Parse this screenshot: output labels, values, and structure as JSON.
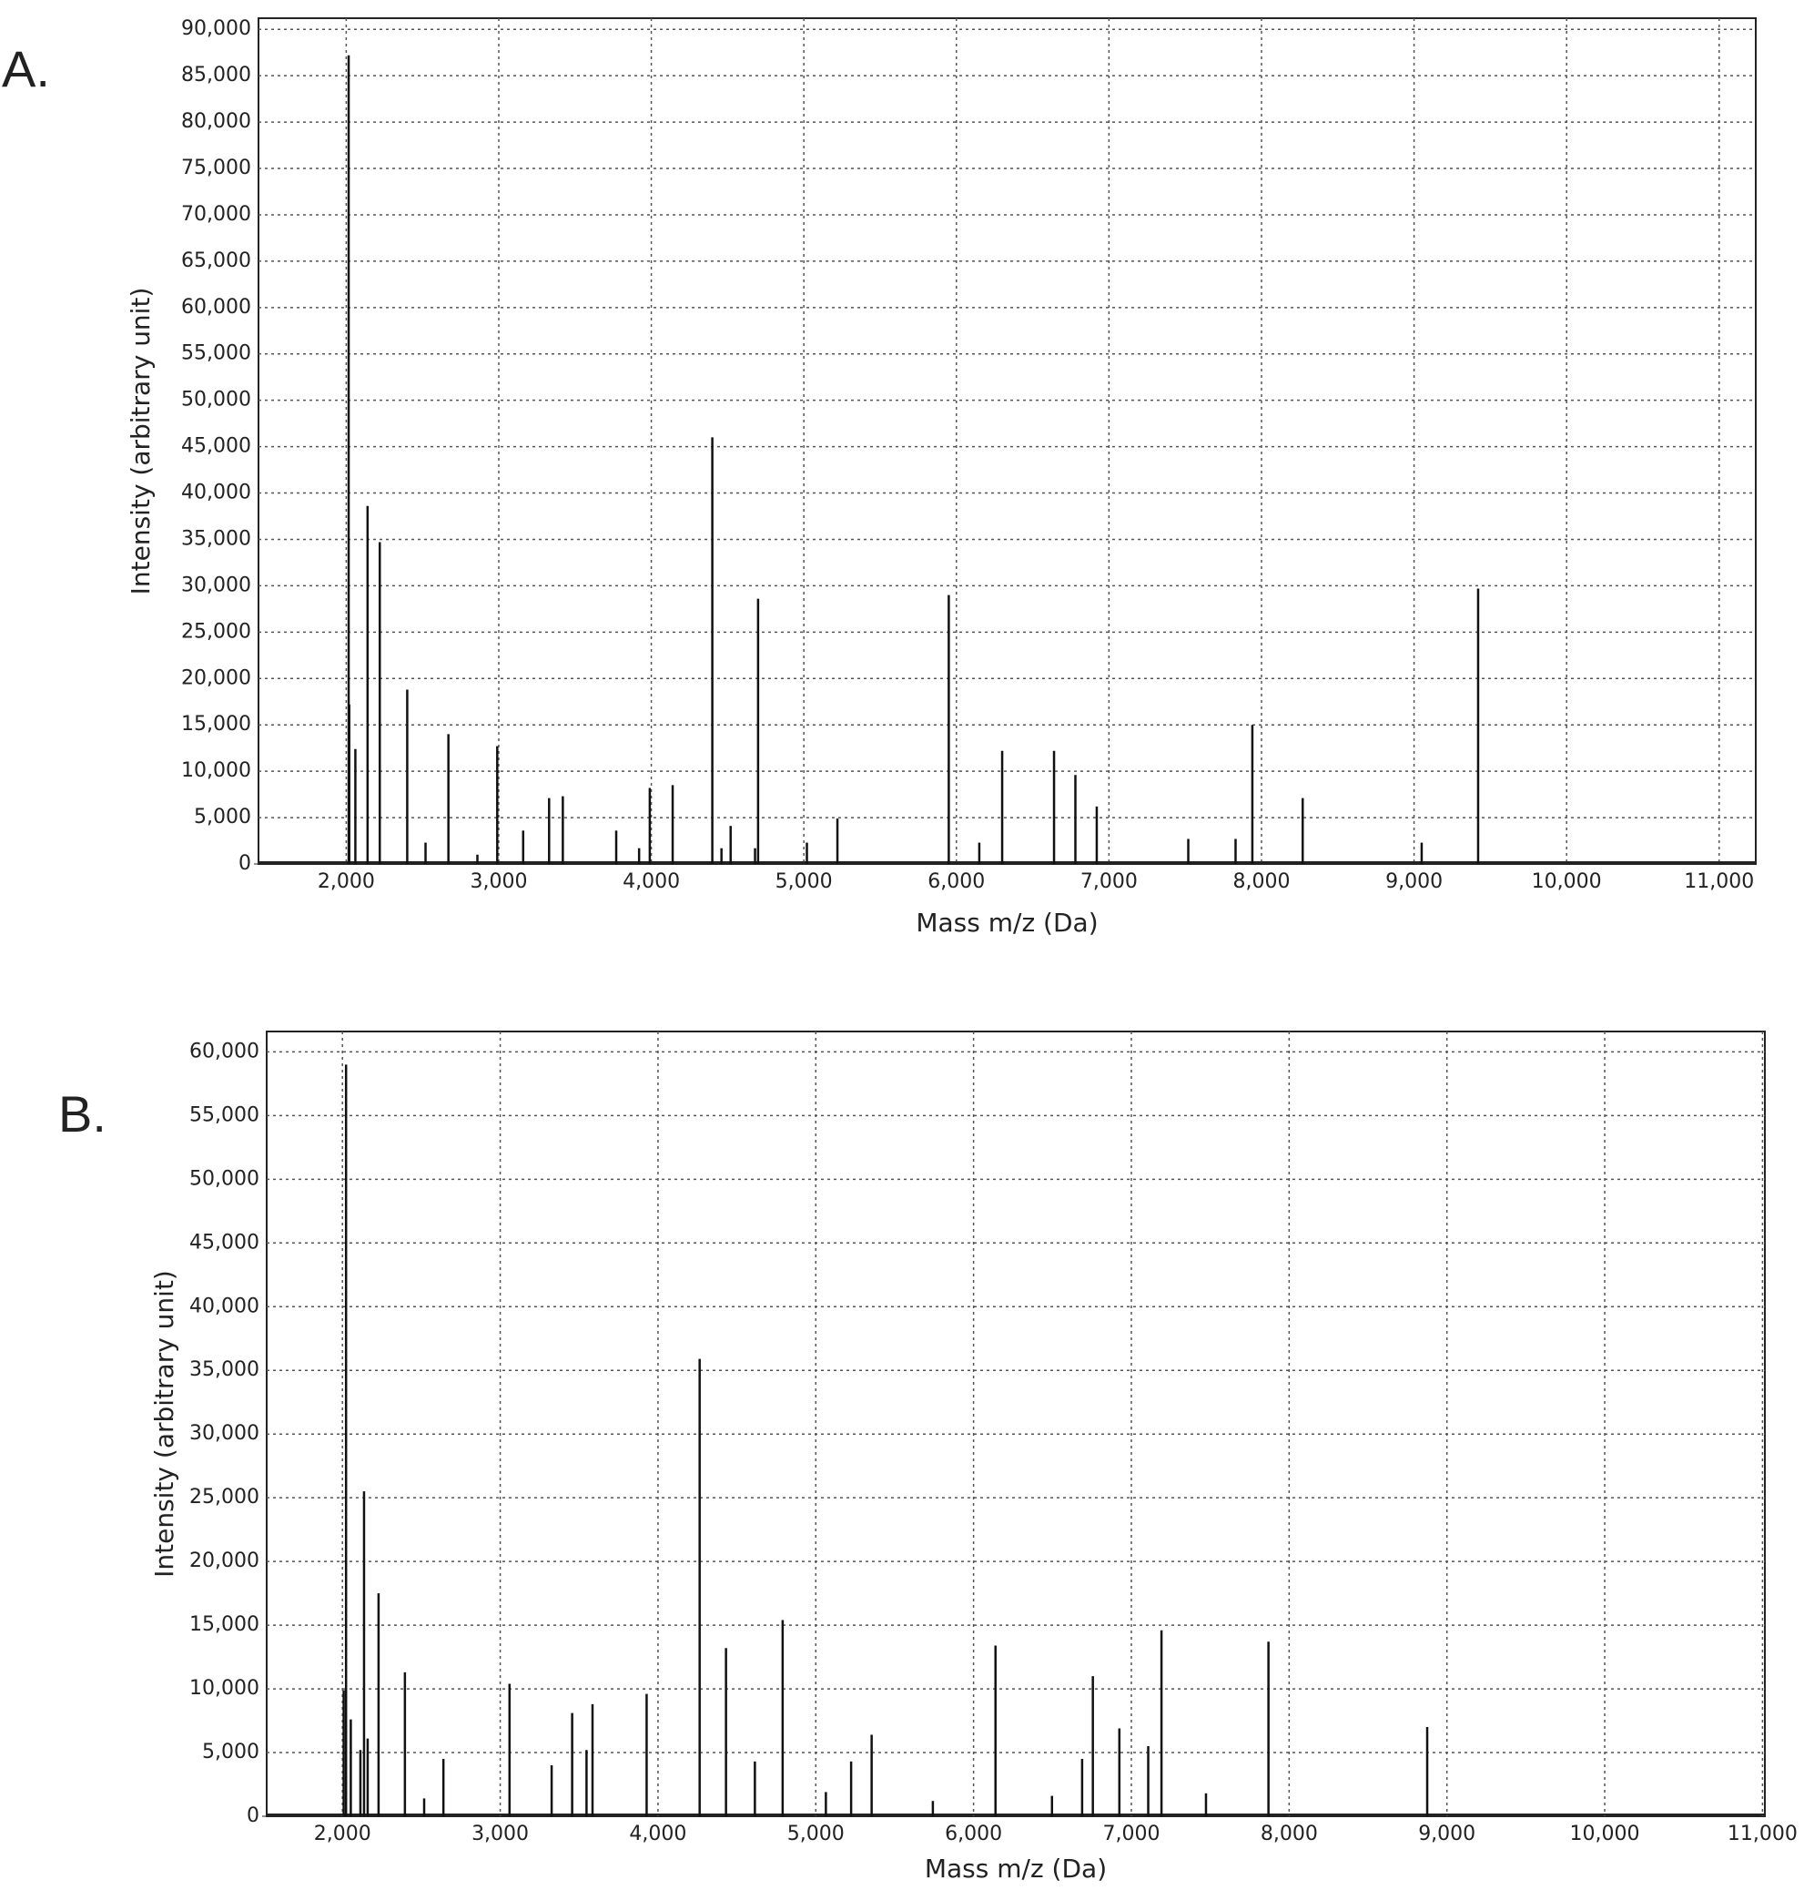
{
  "chart_data": [
    {
      "type": "bar",
      "panel_label": "A.",
      "x_label": "Mass m/z (Da)",
      "y_label": "Intensity (arbitrary unit)",
      "color": "#111111",
      "grid": true,
      "x": [
        2016,
        2020,
        2060,
        2140,
        2220,
        2400,
        2520,
        2670,
        2860,
        2990,
        3160,
        3330,
        3420,
        3770,
        3920,
        3990,
        4140,
        4400,
        4460,
        4520,
        4680,
        4700,
        5020,
        5220,
        5950,
        6150,
        6300,
        6640,
        6780,
        6920,
        7520,
        7830,
        7940,
        8270,
        9050,
        9420
      ],
      "values": [
        87200,
        17200,
        12400,
        38600,
        34700,
        18800,
        2300,
        14000,
        1000,
        12700,
        3600,
        7100,
        7300,
        3600,
        1700,
        8200,
        8500,
        46000,
        1700,
        4100,
        1700,
        28600,
        2300,
        4900,
        29000,
        2300,
        12200,
        12200,
        9600,
        6200,
        2700,
        2700,
        15000,
        7100,
        2300,
        29700
      ],
      "xlim": [
        1425,
        11240
      ],
      "ylim": [
        0,
        91200
      ],
      "xticks": [
        {
          "value": 2000,
          "label": "2,000"
        },
        {
          "value": 3000,
          "label": "3,000"
        },
        {
          "value": 4000,
          "label": "4,000"
        },
        {
          "value": 5000,
          "label": "5,000"
        },
        {
          "value": 6000,
          "label": "6,000"
        },
        {
          "value": 7000,
          "label": "7,000"
        },
        {
          "value": 8000,
          "label": "8,000"
        },
        {
          "value": 9000,
          "label": "9,000"
        },
        {
          "value": 10000,
          "label": "10,000"
        },
        {
          "value": 11000,
          "label": "11,000"
        }
      ],
      "yticks": [
        0,
        {
          "value": 5000,
          "label": "5,000"
        },
        {
          "value": 10000,
          "label": "10,000"
        },
        {
          "value": 15000,
          "label": "15,000"
        },
        {
          "value": 20000,
          "label": "20,000"
        },
        {
          "value": 25000,
          "label": "25,000"
        },
        {
          "value": 30000,
          "label": "30,000"
        },
        {
          "value": 35000,
          "label": "35,000"
        },
        {
          "value": 40000,
          "label": "40,000"
        },
        {
          "value": 45000,
          "label": "45,000"
        },
        {
          "value": 50000,
          "label": "50,000"
        },
        {
          "value": 55000,
          "label": "55,000"
        },
        {
          "value": 60000,
          "label": "60,000"
        },
        {
          "value": 65000,
          "label": "65,000"
        },
        {
          "value": 70000,
          "label": "70,000"
        },
        {
          "value": 75000,
          "label": "75,000"
        },
        {
          "value": 80000,
          "label": "80,000"
        },
        {
          "value": 85000,
          "label": "85,000"
        },
        {
          "value": 90000,
          "label": "90,000"
        }
      ]
    },
    {
      "type": "bar",
      "panel_label": "B.",
      "x_label": "Mass m/z (Da)",
      "y_label": "Intensity (arbitrary unit)",
      "color": "#111111",
      "grid": true,
      "x": [
        2008,
        2023,
        2053,
        2114,
        2137,
        2160,
        2229,
        2396,
        2518,
        2640,
        3059,
        3326,
        3456,
        3547,
        3585,
        3928,
        4264,
        4431,
        4614,
        4790,
        5064,
        5224,
        5354,
        5742,
        6139,
        6497,
        6688,
        6756,
        6924,
        7107,
        7191,
        7473,
        7869,
        8875
      ],
      "values": [
        9900,
        59000,
        7600,
        5200,
        25500,
        6100,
        17500,
        11300,
        1400,
        4500,
        10400,
        4000,
        8100,
        5200,
        8800,
        9600,
        35900,
        13200,
        4300,
        15400,
        1900,
        4300,
        6400,
        1200,
        13400,
        1600,
        4500,
        11000,
        6900,
        5500,
        14600,
        1800,
        13700,
        7000
      ],
      "xlim": [
        1520,
        11015
      ],
      "ylim": [
        0,
        61600
      ],
      "xticks": [
        {
          "value": 2000,
          "label": "2,000"
        },
        {
          "value": 3000,
          "label": "3,000"
        },
        {
          "value": 4000,
          "label": "4,000"
        },
        {
          "value": 5000,
          "label": "5,000"
        },
        {
          "value": 6000,
          "label": "6,000"
        },
        {
          "value": 7000,
          "label": "7,000"
        },
        {
          "value": 8000,
          "label": "8,000"
        },
        {
          "value": 9000,
          "label": "9,000"
        },
        {
          "value": 10000,
          "label": "10,000"
        },
        {
          "value": 11000,
          "label": "11,000"
        }
      ],
      "yticks": [
        0,
        {
          "value": 5000,
          "label": "5,000"
        },
        {
          "value": 10000,
          "label": "10,000"
        },
        {
          "value": 15000,
          "label": "15,000"
        },
        {
          "value": 20000,
          "label": "20,000"
        },
        {
          "value": 25000,
          "label": "25,000"
        },
        {
          "value": 30000,
          "label": "30,000"
        },
        {
          "value": 35000,
          "label": "35,000"
        },
        {
          "value": 40000,
          "label": "40,000"
        },
        {
          "value": 45000,
          "label": "45,000"
        },
        {
          "value": 50000,
          "label": "50,000"
        },
        {
          "value": 55000,
          "label": "55,000"
        },
        {
          "value": 60000,
          "label": "60,000"
        }
      ]
    }
  ]
}
